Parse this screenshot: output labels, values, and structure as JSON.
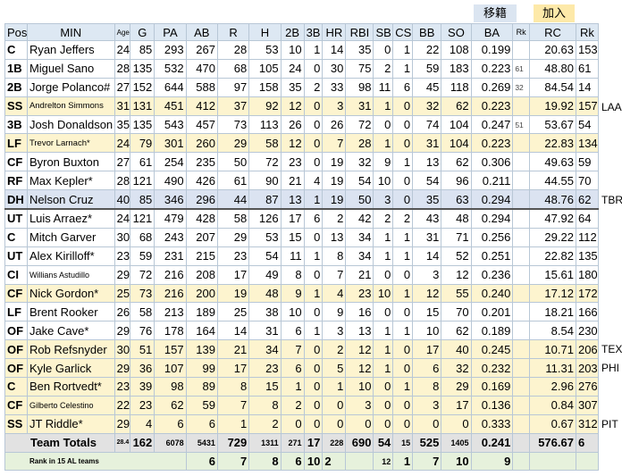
{
  "buttons": {
    "move": "移籍",
    "add": "加入"
  },
  "columns": [
    "Pos",
    "MIN",
    "Age",
    "G",
    "PA",
    "AB",
    "R",
    "H",
    "2B",
    "3B",
    "HR",
    "RBI",
    "SB",
    "CS",
    "BB",
    "SO",
    "BA",
    "Rk",
    "RC",
    "Rk"
  ],
  "rows": [
    {
      "pos": "C",
      "name": "Ryan Jeffers",
      "age": "24",
      "g": "85",
      "pa": "293",
      "ab": "267",
      "r": "28",
      "h": "53",
      "d": "10",
      "t": "1",
      "hr": "14",
      "rbi": "35",
      "sb": "0",
      "cs": "1",
      "bb": "22",
      "so": "108",
      "ba": "0.199",
      "bark": "",
      "rc": "20.63",
      "rcrk": "153",
      "side": ""
    },
    {
      "pos": "1B",
      "name": "Miguel Sano",
      "age": "28",
      "g": "135",
      "pa": "532",
      "ab": "470",
      "r": "68",
      "h": "105",
      "d": "24",
      "t": "0",
      "hr": "30",
      "rbi": "75",
      "sb": "2",
      "cs": "1",
      "bb": "59",
      "so": "183",
      "ba": "0.223",
      "bark": "61",
      "rc": "48.80",
      "rcrk": "61",
      "side": ""
    },
    {
      "pos": "2B",
      "name": "Jorge Polanco#",
      "age": "27",
      "g": "152",
      "pa": "644",
      "ab": "588",
      "r": "97",
      "h": "158",
      "d": "35",
      "t": "2",
      "hr": "33",
      "rbi": "98",
      "sb": "11",
      "cs": "6",
      "bb": "45",
      "so": "118",
      "ba": "0.269",
      "bark": "32",
      "rc": "84.54",
      "rcrk": "14",
      "side": ""
    },
    {
      "pos": "SS",
      "name": "Andrelton Simmons",
      "age": "31",
      "g": "131",
      "pa": "451",
      "ab": "412",
      "r": "37",
      "h": "92",
      "d": "12",
      "t": "0",
      "hr": "3",
      "rbi": "31",
      "sb": "1",
      "cs": "0",
      "bb": "32",
      "so": "62",
      "ba": "0.223",
      "bark": "",
      "rc": "19.92",
      "rcrk": "157",
      "side": "LAA"
    },
    {
      "pos": "3B",
      "name": "Josh Donaldson",
      "age": "35",
      "g": "135",
      "pa": "543",
      "ab": "457",
      "r": "73",
      "h": "113",
      "d": "26",
      "t": "0",
      "hr": "26",
      "rbi": "72",
      "sb": "0",
      "cs": "0",
      "bb": "74",
      "so": "104",
      "ba": "0.247",
      "bark": "51",
      "rc": "53.67",
      "rcrk": "54",
      "side": ""
    },
    {
      "pos": "LF",
      "name": "Trevor Larnach*",
      "age": "24",
      "g": "79",
      "pa": "301",
      "ab": "260",
      "r": "29",
      "h": "58",
      "d": "12",
      "t": "0",
      "hr": "7",
      "rbi": "28",
      "sb": "1",
      "cs": "0",
      "bb": "31",
      "so": "104",
      "ba": "0.223",
      "bark": "",
      "rc": "22.83",
      "rcrk": "134",
      "side": ""
    },
    {
      "pos": "CF",
      "name": "Byron Buxton",
      "age": "27",
      "g": "61",
      "pa": "254",
      "ab": "235",
      "r": "50",
      "h": "72",
      "d": "23",
      "t": "0",
      "hr": "19",
      "rbi": "32",
      "sb": "9",
      "cs": "1",
      "bb": "13",
      "so": "62",
      "ba": "0.306",
      "bark": "",
      "rc": "49.63",
      "rcrk": "59",
      "side": ""
    },
    {
      "pos": "RF",
      "name": "Max Kepler*",
      "age": "28",
      "g": "121",
      "pa": "490",
      "ab": "426",
      "r": "61",
      "h": "90",
      "d": "21",
      "t": "4",
      "hr": "19",
      "rbi": "54",
      "sb": "10",
      "cs": "0",
      "bb": "54",
      "so": "96",
      "ba": "0.211",
      "bark": "",
      "rc": "44.55",
      "rcrk": "70",
      "side": ""
    },
    {
      "pos": "DH",
      "name": "Nelson Cruz",
      "age": "40",
      "g": "85",
      "pa": "346",
      "ab": "296",
      "r": "44",
      "h": "87",
      "d": "13",
      "t": "1",
      "hr": "19",
      "rbi": "50",
      "sb": "3",
      "cs": "0",
      "bb": "35",
      "so": "63",
      "ba": "0.294",
      "bark": "",
      "rc": "48.76",
      "rcrk": "62",
      "side": "TBR"
    },
    {
      "pos": "UT",
      "name": "Luis Arraez*",
      "age": "24",
      "g": "121",
      "pa": "479",
      "ab": "428",
      "r": "58",
      "h": "126",
      "d": "17",
      "t": "6",
      "hr": "2",
      "rbi": "42",
      "sb": "2",
      "cs": "2",
      "bb": "43",
      "so": "48",
      "ba": "0.294",
      "bark": "",
      "rc": "47.92",
      "rcrk": "64",
      "side": ""
    },
    {
      "pos": "C",
      "name": "Mitch Garver",
      "age": "30",
      "g": "68",
      "pa": "243",
      "ab": "207",
      "r": "29",
      "h": "53",
      "d": "15",
      "t": "0",
      "hr": "13",
      "rbi": "34",
      "sb": "1",
      "cs": "1",
      "bb": "31",
      "so": "71",
      "ba": "0.256",
      "bark": "",
      "rc": "29.22",
      "rcrk": "112",
      "side": ""
    },
    {
      "pos": "UT",
      "name": "Alex Kirilloff*",
      "age": "23",
      "g": "59",
      "pa": "231",
      "ab": "215",
      "r": "23",
      "h": "54",
      "d": "11",
      "t": "1",
      "hr": "8",
      "rbi": "34",
      "sb": "1",
      "cs": "1",
      "bb": "14",
      "so": "52",
      "ba": "0.251",
      "bark": "",
      "rc": "22.82",
      "rcrk": "135",
      "side": ""
    },
    {
      "pos": "CI",
      "name": "Willians Astudillo",
      "age": "29",
      "g": "72",
      "pa": "216",
      "ab": "208",
      "r": "17",
      "h": "49",
      "d": "8",
      "t": "0",
      "hr": "7",
      "rbi": "21",
      "sb": "0",
      "cs": "0",
      "bb": "3",
      "so": "12",
      "ba": "0.236",
      "bark": "",
      "rc": "15.61",
      "rcrk": "180",
      "side": ""
    },
    {
      "pos": "CF",
      "name": "Nick Gordon*",
      "age": "25",
      "g": "73",
      "pa": "216",
      "ab": "200",
      "r": "19",
      "h": "48",
      "d": "9",
      "t": "1",
      "hr": "4",
      "rbi": "23",
      "sb": "10",
      "cs": "1",
      "bb": "12",
      "so": "55",
      "ba": "0.240",
      "bark": "",
      "rc": "17.12",
      "rcrk": "172",
      "side": ""
    },
    {
      "pos": "LF",
      "name": "Brent Rooker",
      "age": "26",
      "g": "58",
      "pa": "213",
      "ab": "189",
      "r": "25",
      "h": "38",
      "d": "10",
      "t": "0",
      "hr": "9",
      "rbi": "16",
      "sb": "0",
      "cs": "0",
      "bb": "15",
      "so": "70",
      "ba": "0.201",
      "bark": "",
      "rc": "18.21",
      "rcrk": "166",
      "side": ""
    },
    {
      "pos": "OF",
      "name": "Jake Cave*",
      "age": "29",
      "g": "76",
      "pa": "178",
      "ab": "164",
      "r": "14",
      "h": "31",
      "d": "6",
      "t": "1",
      "hr": "3",
      "rbi": "13",
      "sb": "1",
      "cs": "1",
      "bb": "10",
      "so": "62",
      "ba": "0.189",
      "bark": "",
      "rc": "8.54",
      "rcrk": "230",
      "side": ""
    },
    {
      "pos": "OF",
      "name": "Rob Refsnyder",
      "age": "30",
      "g": "51",
      "pa": "157",
      "ab": "139",
      "r": "21",
      "h": "34",
      "d": "7",
      "t": "0",
      "hr": "2",
      "rbi": "12",
      "sb": "1",
      "cs": "0",
      "bb": "17",
      "so": "40",
      "ba": "0.245",
      "bark": "",
      "rc": "10.71",
      "rcrk": "206",
      "side": "TEX"
    },
    {
      "pos": "OF",
      "name": "Kyle Garlick",
      "age": "29",
      "g": "36",
      "pa": "107",
      "ab": "99",
      "r": "17",
      "h": "23",
      "d": "6",
      "t": "0",
      "hr": "5",
      "rbi": "12",
      "sb": "1",
      "cs": "0",
      "bb": "6",
      "so": "32",
      "ba": "0.232",
      "bark": "",
      "rc": "11.31",
      "rcrk": "203",
      "side": "PHI"
    },
    {
      "pos": "C",
      "name": "Ben Rortvedt*",
      "age": "23",
      "g": "39",
      "pa": "98",
      "ab": "89",
      "r": "8",
      "h": "15",
      "d": "1",
      "t": "0",
      "hr": "1",
      "rbi": "10",
      "sb": "0",
      "cs": "1",
      "bb": "8",
      "so": "29",
      "ba": "0.169",
      "bark": "",
      "rc": "2.96",
      "rcrk": "276",
      "side": ""
    },
    {
      "pos": "CF",
      "name": "Gilberto Celestino",
      "age": "22",
      "g": "23",
      "pa": "62",
      "ab": "59",
      "r": "7",
      "h": "8",
      "d": "2",
      "t": "0",
      "hr": "0",
      "rbi": "3",
      "sb": "0",
      "cs": "0",
      "bb": "3",
      "so": "17",
      "ba": "0.136",
      "bark": "",
      "rc": "0.84",
      "rcrk": "307",
      "side": ""
    },
    {
      "pos": "SS",
      "name": "JT Riddle*",
      "age": "29",
      "g": "4",
      "pa": "6",
      "ab": "6",
      "r": "1",
      "h": "2",
      "d": "0",
      "t": "0",
      "hr": "0",
      "rbi": "0",
      "sb": "0",
      "cs": "0",
      "bb": "0",
      "so": "0",
      "ba": "0.333",
      "bark": "",
      "rc": "0.67",
      "rcrk": "312",
      "side": "PIT"
    }
  ],
  "totals": {
    "label": "Team Totals",
    "age": "28.4",
    "g": "162",
    "pa": "6078",
    "ab": "5431",
    "r": "729",
    "h": "1311",
    "d": "271",
    "t": "17",
    "hr": "228",
    "rbi": "690",
    "sb": "54",
    "cs": "15",
    "bb": "525",
    "so": "1405",
    "ba": "0.241",
    "rc": "576.67",
    "rcrk": "6"
  },
  "ranks": {
    "label": "Rank in 15 AL teams",
    "ab": "6",
    "r": "7",
    "h": "8",
    "d": "6",
    "t": "10",
    "hr": "2",
    "sb": "12",
    "cs": "1",
    "bb": "7",
    "so": "10",
    "ba": "9"
  }
}
